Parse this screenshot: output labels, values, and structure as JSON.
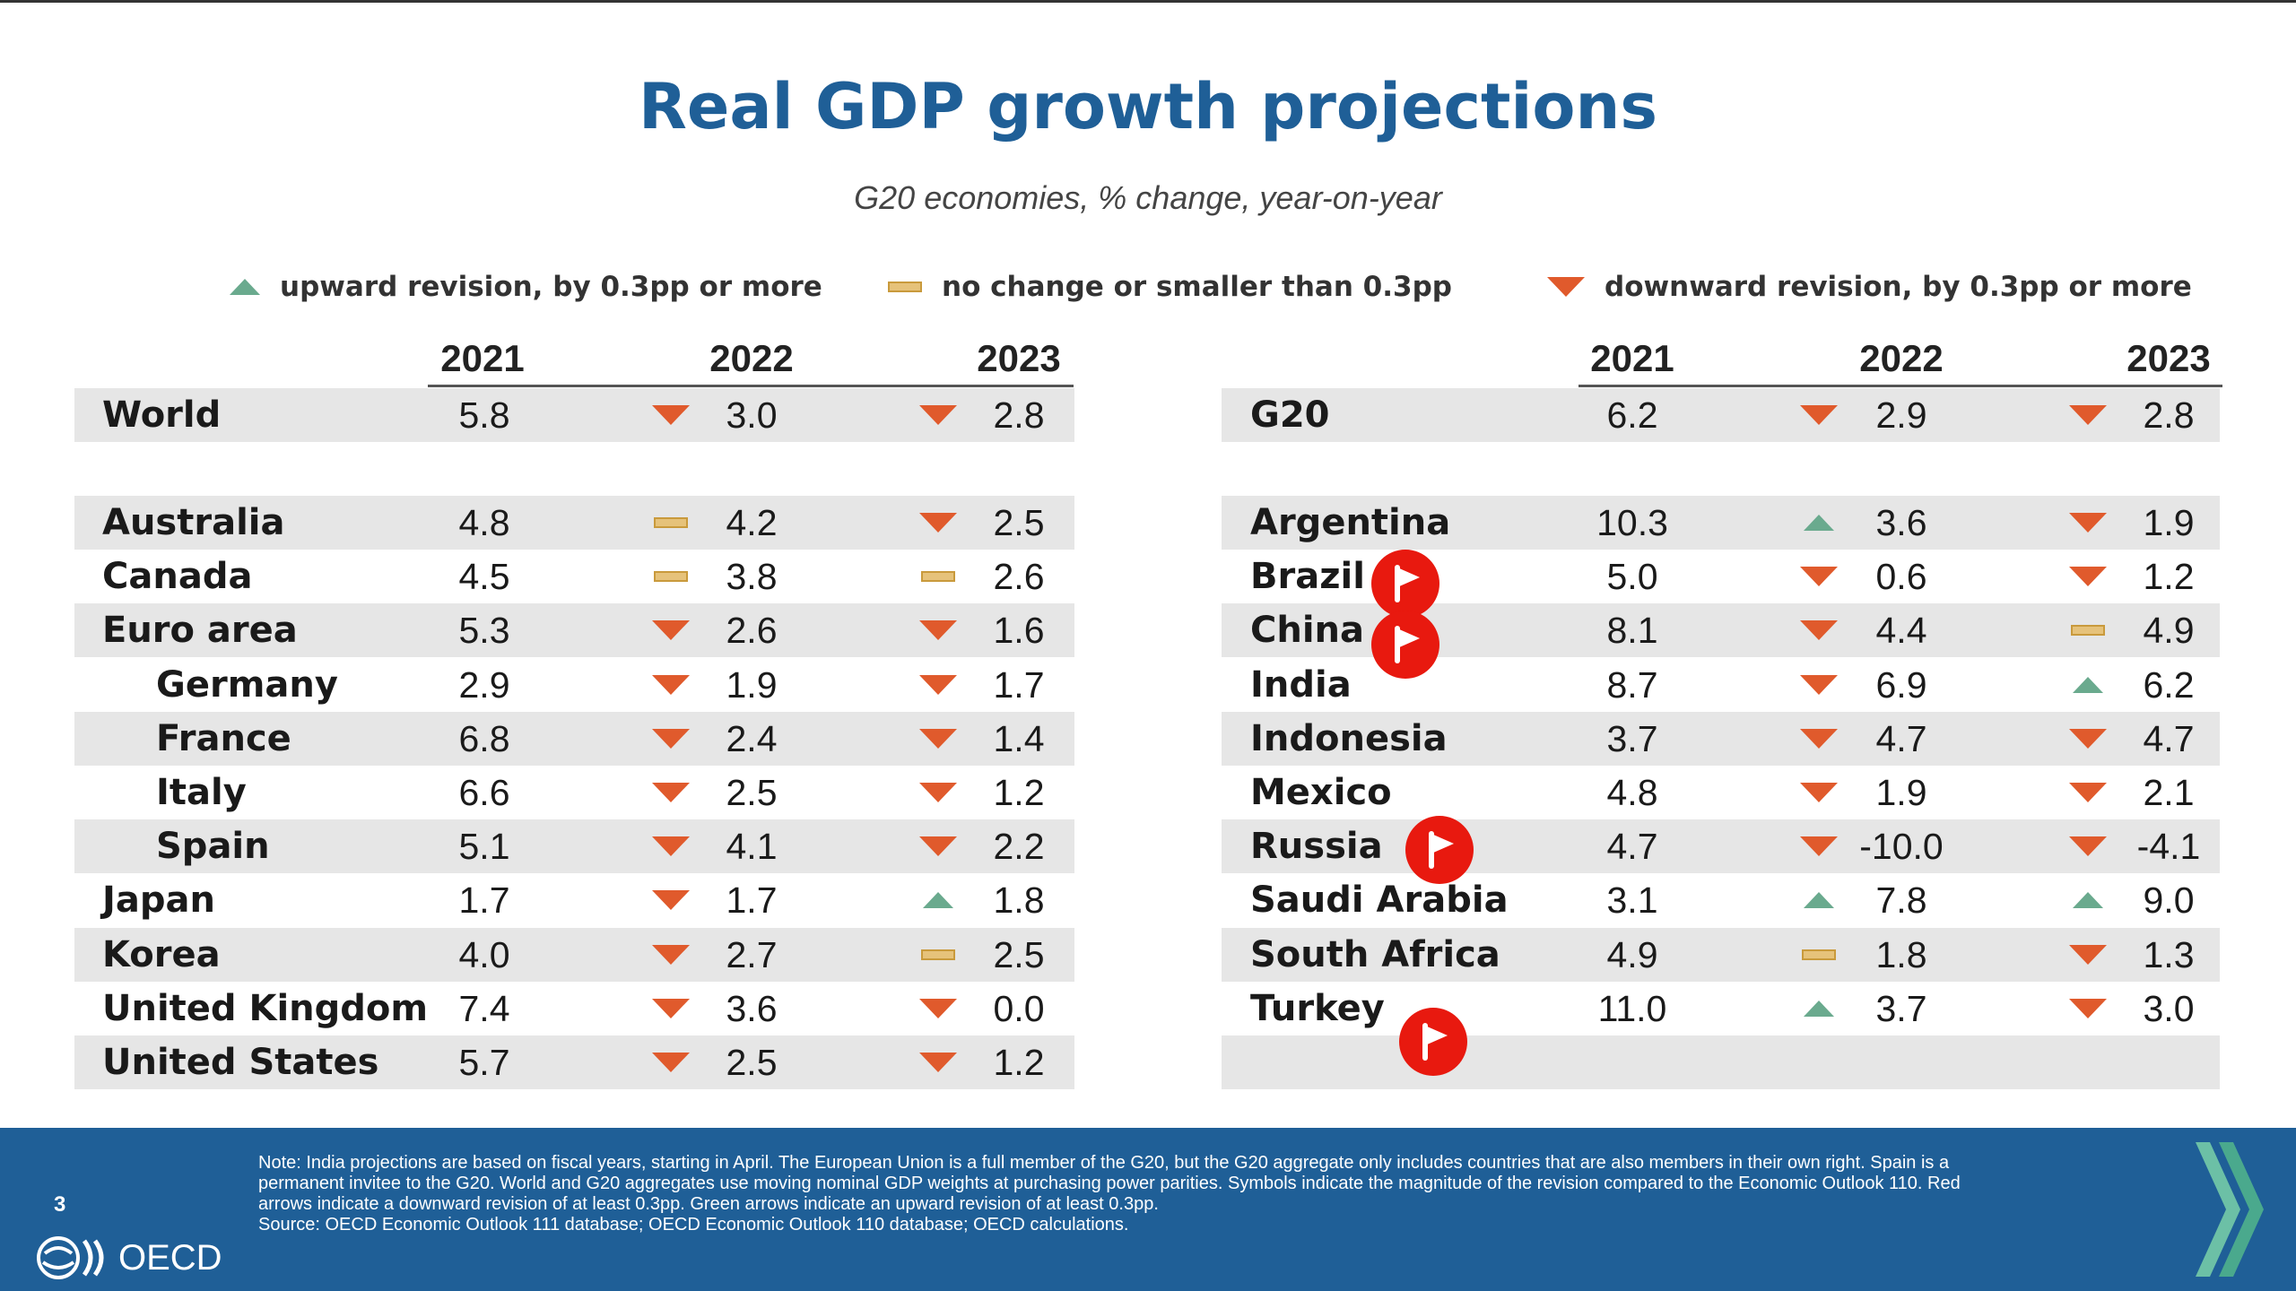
{
  "title": "Real GDP growth projections",
  "subtitle": "G20 economies, % change, year-on-year",
  "legend": {
    "up": {
      "label": "upward revision, by 0.3pp or more",
      "color": "#6aaa8e",
      "icon": "triangle-up-icon"
    },
    "same": {
      "label": "no change or smaller than 0.3pp",
      "color": "#e6c27a",
      "icon": "dash-icon"
    },
    "down": {
      "label": "downward revision, by 0.3pp or more",
      "color": "#e05a2c",
      "icon": "triangle-down-icon"
    }
  },
  "years": [
    "2021",
    "2022",
    "2023"
  ],
  "left_table": {
    "aggregate": {
      "name": "World",
      "v2021": "5.8",
      "v2022": "3.0",
      "s2022": "down",
      "v2023": "2.8",
      "s2023": "down"
    },
    "rows": [
      {
        "name": "Australia",
        "indent": false,
        "v2021": "4.8",
        "v2022": "4.2",
        "s2022": "same",
        "v2023": "2.5",
        "s2023": "down"
      },
      {
        "name": "Canada",
        "indent": false,
        "v2021": "4.5",
        "v2022": "3.8",
        "s2022": "same",
        "v2023": "2.6",
        "s2023": "same"
      },
      {
        "name": "Euro area",
        "indent": false,
        "v2021": "5.3",
        "v2022": "2.6",
        "s2022": "down",
        "v2023": "1.6",
        "s2023": "down"
      },
      {
        "name": "Germany",
        "indent": true,
        "v2021": "2.9",
        "v2022": "1.9",
        "s2022": "down",
        "v2023": "1.7",
        "s2023": "down"
      },
      {
        "name": "France",
        "indent": true,
        "v2021": "6.8",
        "v2022": "2.4",
        "s2022": "down",
        "v2023": "1.4",
        "s2023": "down"
      },
      {
        "name": "Italy",
        "indent": true,
        "v2021": "6.6",
        "v2022": "2.5",
        "s2022": "down",
        "v2023": "1.2",
        "s2023": "down"
      },
      {
        "name": "Spain",
        "indent": true,
        "v2021": "5.1",
        "v2022": "4.1",
        "s2022": "down",
        "v2023": "2.2",
        "s2023": "down"
      },
      {
        "name": "Japan",
        "indent": false,
        "v2021": "1.7",
        "v2022": "1.7",
        "s2022": "down",
        "v2023": "1.8",
        "s2023": "up"
      },
      {
        "name": "Korea",
        "indent": false,
        "v2021": "4.0",
        "v2022": "2.7",
        "s2022": "down",
        "v2023": "2.5",
        "s2023": "same"
      },
      {
        "name": "United Kingdom",
        "indent": false,
        "v2021": "7.4",
        "v2022": "3.6",
        "s2022": "down",
        "v2023": "0.0",
        "s2023": "down"
      },
      {
        "name": "United States",
        "indent": false,
        "v2021": "5.7",
        "v2022": "2.5",
        "s2022": "down",
        "v2023": "1.2",
        "s2023": "down"
      }
    ]
  },
  "right_table": {
    "aggregate": {
      "name": "G20",
      "v2021": "6.2",
      "v2022": "2.9",
      "s2022": "down",
      "v2023": "2.8",
      "s2023": "down"
    },
    "rows": [
      {
        "name": "Argentina",
        "v2021": "10.3",
        "v2022": "3.6",
        "s2022": "up",
        "v2023": "1.9",
        "s2023": "down"
      },
      {
        "name": "Brazil",
        "v2021": "5.0",
        "v2022": "0.6",
        "s2022": "down",
        "v2023": "1.2",
        "s2023": "down"
      },
      {
        "name": "China",
        "v2021": "8.1",
        "v2022": "4.4",
        "s2022": "down",
        "v2023": "4.9",
        "s2023": "same"
      },
      {
        "name": "India",
        "v2021": "8.7",
        "v2022": "6.9",
        "s2022": "down",
        "v2023": "6.2",
        "s2023": "up"
      },
      {
        "name": "Indonesia",
        "v2021": "3.7",
        "v2022": "4.7",
        "s2022": "down",
        "v2023": "4.7",
        "s2023": "down"
      },
      {
        "name": "Mexico",
        "v2021": "4.8",
        "v2022": "1.9",
        "s2022": "down",
        "v2023": "2.1",
        "s2023": "down"
      },
      {
        "name": "Russia",
        "v2021": "4.7",
        "v2022": "-10.0",
        "s2022": "down",
        "v2023": "-4.1",
        "s2023": "down"
      },
      {
        "name": "Saudi Arabia",
        "v2021": "3.1",
        "v2022": "7.8",
        "s2022": "up",
        "v2023": "9.0",
        "s2023": "up"
      },
      {
        "name": "South Africa",
        "v2021": "4.9",
        "v2022": "1.8",
        "s2022": "same",
        "v2023": "1.3",
        "s2023": "down"
      },
      {
        "name": "Turkey",
        "v2021": "11.0",
        "v2022": "3.7",
        "s2022": "up",
        "v2023": "3.0",
        "s2023": "down"
      },
      {
        "name": "",
        "v2021": "",
        "v2022": "",
        "s2022": "",
        "v2023": "",
        "s2023": ""
      }
    ]
  },
  "footer": {
    "note_lines": [
      "Note: India projections are based on fiscal years, starting in April. The European Union is a full member of the G20, but the G20 aggregate only includes countries that are also members in their own right. Spain is a",
      "permanent invitee to the G20. World and G20 aggregates use moving nominal GDP weights at purchasing power parities. Symbols indicate the magnitude of the revision compared to the Economic Outlook 110. Red",
      "arrows indicate a downward revision of at least 0.3pp. Green arrows indicate an upward revision of at least 0.3pp.",
      "Source: OECD Economic Outlook 111 database; OECD Economic Outlook 110 database; OECD calculations."
    ],
    "page_number": "3",
    "logo_text": "OECD"
  }
}
